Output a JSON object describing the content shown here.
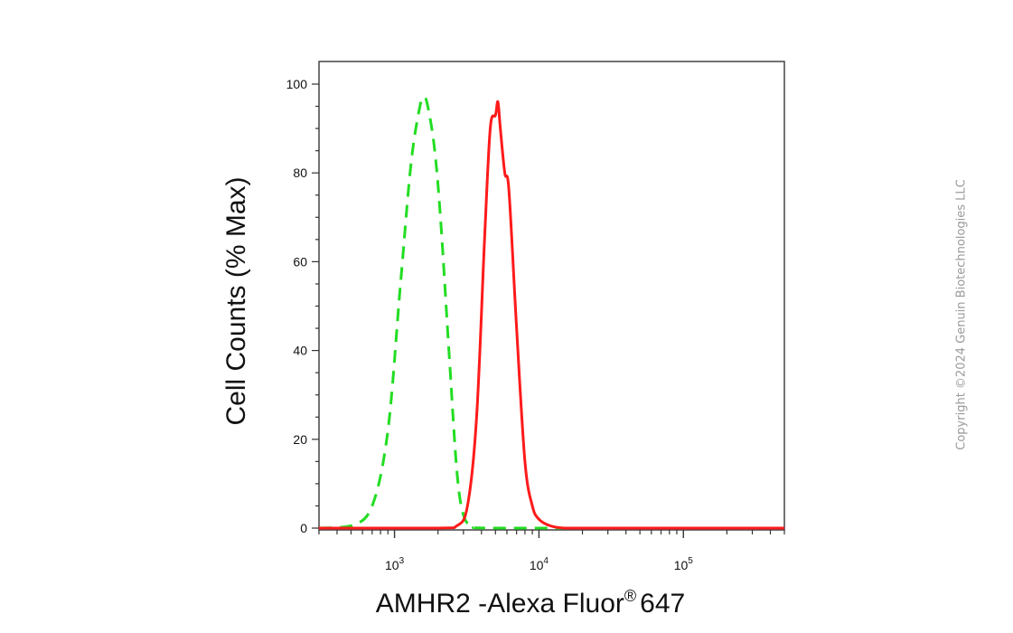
{
  "chart_data": {
    "type": "line",
    "xlabel": "AMHR2 -Alexa Fluor",
    "xlabel_sup": "®",
    "xlabel_suffix": "647",
    "ylabel": "Cell Counts (% Max)",
    "x_scale": "log",
    "xlim": [
      300,
      500000
    ],
    "ylim": [
      0,
      105
    ],
    "x_ticks": [
      {
        "value": 1000,
        "base": "10",
        "exp": "3"
      },
      {
        "value": 10000,
        "base": "10",
        "exp": "4"
      },
      {
        "value": 100000,
        "base": "10",
        "exp": "5"
      }
    ],
    "y_ticks": [
      "0",
      "20",
      "40",
      "60",
      "80",
      "100"
    ],
    "grid": false,
    "legend": "none",
    "series": [
      {
        "color": "#22dd22",
        "style": "dashed",
        "x": [
          300,
          500,
          700,
          900,
          1100,
          1300,
          1500,
          1600,
          1700,
          1900,
          2100,
          2400,
          2700,
          3000,
          3500,
          5000,
          100000,
          500000
        ],
        "y": [
          0,
          0.5,
          5,
          22,
          55,
          82,
          95,
          97,
          95,
          85,
          68,
          38,
          13,
          3,
          0.5,
          0,
          0,
          0
        ]
      },
      {
        "color": "#ff1a1a",
        "style": "solid",
        "x": [
          300,
          2000,
          2700,
          3200,
          3700,
          4200,
          4600,
          5000,
          5200,
          5400,
          5800,
          6200,
          7000,
          8000,
          9000,
          10000,
          12000,
          15000,
          20000,
          100000,
          500000
        ],
        "y": [
          0,
          0,
          0.5,
          5,
          25,
          65,
          90,
          93,
          96,
          90,
          80,
          76,
          45,
          15,
          5,
          2,
          0.5,
          0,
          0,
          0,
          0
        ]
      }
    ]
  },
  "copyright": "Copyright ©2024 Genuin Biotechnologies LLC"
}
